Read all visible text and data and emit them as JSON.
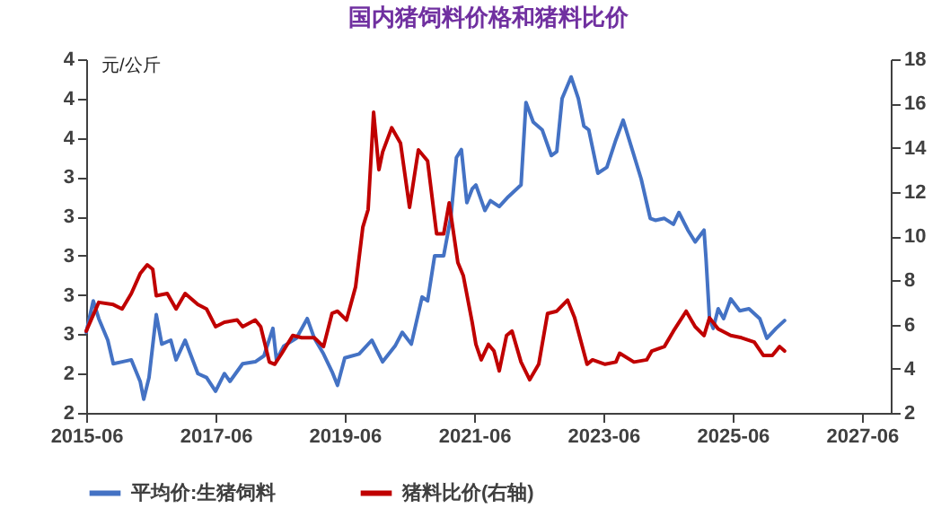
{
  "chart_data": {
    "type": "line",
    "title": "国内猪饲料价格和猪料比价",
    "ylabel": "元/公斤",
    "xlim": [
      "2015-06-01",
      "2027-11-11"
    ],
    "xticks": [
      "2015-06",
      "2017-06",
      "2019-06",
      "2021-06",
      "2023-06",
      "2025-06",
      "2027-06"
    ],
    "ylim": [
      2.2,
      4.0
    ],
    "yticks": [
      {
        "value": 2.2,
        "label": "2"
      },
      {
        "value": 2.4,
        "label": "2"
      },
      {
        "value": 2.6,
        "label": "3"
      },
      {
        "value": 2.8,
        "label": "3"
      },
      {
        "value": 3.0,
        "label": "3"
      },
      {
        "value": 3.2,
        "label": "3"
      },
      {
        "value": 3.4,
        "label": "3"
      },
      {
        "value": 3.6,
        "label": "4"
      },
      {
        "value": 3.8,
        "label": "4"
      },
      {
        "value": 4.0,
        "label": "4"
      }
    ],
    "y2lim": [
      2,
      18
    ],
    "y2ticks": [
      2,
      4,
      6,
      8,
      10,
      12,
      14,
      16,
      18
    ],
    "grid": false,
    "legend": "bottom",
    "marker": "none",
    "line_style": "solid",
    "series": [
      {
        "name": "平均价:生猪饲料",
        "color": "#4472c4",
        "x": [
          "2015-06-01",
          "2015-07-11",
          "2015-08-11",
          "2015-10-01",
          "2015-11-01",
          "2015-12-21",
          "2016-02-11",
          "2016-04-01",
          "2016-04-21",
          "2016-05-21",
          "2016-07-01",
          "2016-08-01",
          "2016-09-21",
          "2016-10-21",
          "2016-12-11",
          "2017-02-21",
          "2017-04-11",
          "2017-06-01",
          "2017-07-21",
          "2017-08-21",
          "2017-11-01",
          "2018-01-11",
          "2018-03-01",
          "2018-04-21",
          "2018-05-11",
          "2018-06-21",
          "2018-09-01",
          "2018-11-01",
          "2018-12-11",
          "2019-02-01",
          "2019-03-21",
          "2019-04-21",
          "2019-06-01",
          "2019-08-21",
          "2019-11-01",
          "2020-01-01",
          "2020-03-11",
          "2020-04-21",
          "2020-06-11",
          "2020-08-11",
          "2020-09-11",
          "2020-10-21",
          "2020-12-11",
          "2021-01-21",
          "2021-02-21",
          "2021-03-21",
          "2021-04-21",
          "2021-05-21",
          "2021-06-11",
          "2021-08-01",
          "2021-09-01",
          "2021-10-21",
          "2021-12-11",
          "2022-02-21",
          "2022-03-21",
          "2022-05-01",
          "2022-06-21",
          "2022-08-11",
          "2022-09-11",
          "2022-10-11",
          "2022-12-01",
          "2023-01-11",
          "2023-02-11",
          "2023-03-11",
          "2023-05-01",
          "2023-06-21",
          "2023-08-11",
          "2023-09-21",
          "2023-11-11",
          "2024-01-01",
          "2024-02-21",
          "2024-03-21",
          "2024-05-11",
          "2024-07-01",
          "2024-08-01",
          "2024-09-21",
          "2024-11-01",
          "2024-12-21",
          "2025-01-01",
          "2025-01-21",
          "2025-02-11",
          "2025-03-11",
          "2025-04-11",
          "2025-05-21",
          "2025-07-11",
          "2025-09-01",
          "2025-11-01",
          "2025-12-11",
          "2026-02-01",
          "2026-03-21"
        ],
        "values": [
          2.61,
          2.77,
          2.68,
          2.57,
          2.45,
          2.46,
          2.47,
          2.36,
          2.27,
          2.38,
          2.7,
          2.55,
          2.57,
          2.47,
          2.57,
          2.4,
          2.38,
          2.31,
          2.4,
          2.36,
          2.45,
          2.46,
          2.49,
          2.63,
          2.47,
          2.54,
          2.58,
          2.68,
          2.58,
          2.5,
          2.41,
          2.34,
          2.48,
          2.5,
          2.57,
          2.46,
          2.54,
          2.61,
          2.55,
          2.79,
          2.77,
          3.0,
          3.0,
          3.2,
          3.5,
          3.54,
          3.27,
          3.34,
          3.36,
          3.23,
          3.28,
          3.25,
          3.3,
          3.36,
          3.78,
          3.68,
          3.64,
          3.51,
          3.53,
          3.8,
          3.91,
          3.8,
          3.66,
          3.64,
          3.42,
          3.45,
          3.59,
          3.69,
          3.54,
          3.39,
          3.19,
          3.18,
          3.19,
          3.16,
          3.22,
          3.13,
          3.07,
          3.13,
          2.99,
          2.68,
          2.63,
          2.73,
          2.68,
          2.78,
          2.72,
          2.73,
          2.68,
          2.58,
          2.63,
          2.67
        ]
      },
      {
        "name": "猪料比价(右轴)",
        "color": "#c00000",
        "axis": "y2",
        "x": [
          "2015-06-01",
          "2015-08-11",
          "2015-11-01",
          "2015-12-21",
          "2016-02-11",
          "2016-04-01",
          "2016-05-11",
          "2016-06-11",
          "2016-07-01",
          "2016-09-01",
          "2016-10-21",
          "2016-12-11",
          "2017-02-21",
          "2017-04-11",
          "2017-06-01",
          "2017-07-21",
          "2017-10-01",
          "2017-11-01",
          "2018-01-11",
          "2018-02-11",
          "2018-04-01",
          "2018-05-01",
          "2018-06-11",
          "2018-08-11",
          "2018-10-01",
          "2018-12-11",
          "2019-02-01",
          "2019-03-21",
          "2019-04-21",
          "2019-06-11",
          "2019-08-01",
          "2019-09-11",
          "2019-10-11",
          "2019-11-11",
          "2019-12-11",
          "2020-01-01",
          "2020-02-21",
          "2020-04-11",
          "2020-06-01",
          "2020-07-21",
          "2020-09-11",
          "2020-11-01",
          "2020-12-11",
          "2021-01-11",
          "2021-03-01",
          "2021-04-01",
          "2021-05-21",
          "2021-06-11",
          "2021-07-11",
          "2021-08-21",
          "2021-09-21",
          "2021-10-21",
          "2021-12-01",
          "2022-01-01",
          "2022-02-21",
          "2022-04-11",
          "2022-06-01",
          "2022-07-21",
          "2022-09-11",
          "2022-11-11",
          "2022-12-21",
          "2023-03-01",
          "2023-04-01",
          "2023-06-11",
          "2023-08-11",
          "2023-09-01",
          "2023-11-21",
          "2024-02-01",
          "2024-03-01",
          "2024-05-11",
          "2024-07-01",
          "2024-09-11",
          "2024-11-01",
          "2024-12-21",
          "2025-01-21",
          "2025-03-11",
          "2025-05-21",
          "2025-07-21",
          "2025-10-01",
          "2025-11-21",
          "2026-01-11",
          "2026-02-21",
          "2026-03-21"
        ],
        "values": [
          5.7,
          7.0,
          6.9,
          6.7,
          7.4,
          8.3,
          8.7,
          8.5,
          7.3,
          7.4,
          6.7,
          7.4,
          6.9,
          6.7,
          5.9,
          6.1,
          6.2,
          5.9,
          6.2,
          5.9,
          4.3,
          4.2,
          4.7,
          5.5,
          5.4,
          5.4,
          5.0,
          6.5,
          6.6,
          6.2,
          7.7,
          10.4,
          11.2,
          15.6,
          13.0,
          13.8,
          14.9,
          14.2,
          11.3,
          13.9,
          13.4,
          10.1,
          10.1,
          11.5,
          8.8,
          8.2,
          6.1,
          5.1,
          4.4,
          5.1,
          4.8,
          3.9,
          5.5,
          5.7,
          4.3,
          3.5,
          4.2,
          6.5,
          6.6,
          7.1,
          6.3,
          4.2,
          4.4,
          4.2,
          4.3,
          4.7,
          4.3,
          4.4,
          4.8,
          5.0,
          5.7,
          6.6,
          5.9,
          5.5,
          6.3,
          5.8,
          5.5,
          5.4,
          5.2,
          4.6,
          4.6,
          5.0,
          4.8
        ]
      }
    ]
  }
}
